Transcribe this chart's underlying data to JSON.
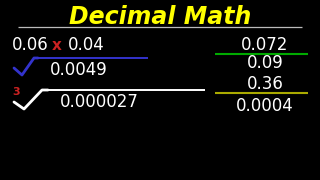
{
  "bg_color": "#000000",
  "title": "Decimal Math",
  "title_color": "#FFFF00",
  "title_underline_color": "#BBBBBB",
  "text_color": "#FFFFFF",
  "multiply_x_color": "#CC2222",
  "sqrt_color": "#3333CC",
  "cbrt_numeral_color": "#CC2222",
  "cbrt_radical_color": "#FFFFFF",
  "div_line1_color": "#00AA00",
  "div_line2_color": "#AAAA00",
  "figsize": [
    3.2,
    1.8
  ],
  "dpi": 100
}
